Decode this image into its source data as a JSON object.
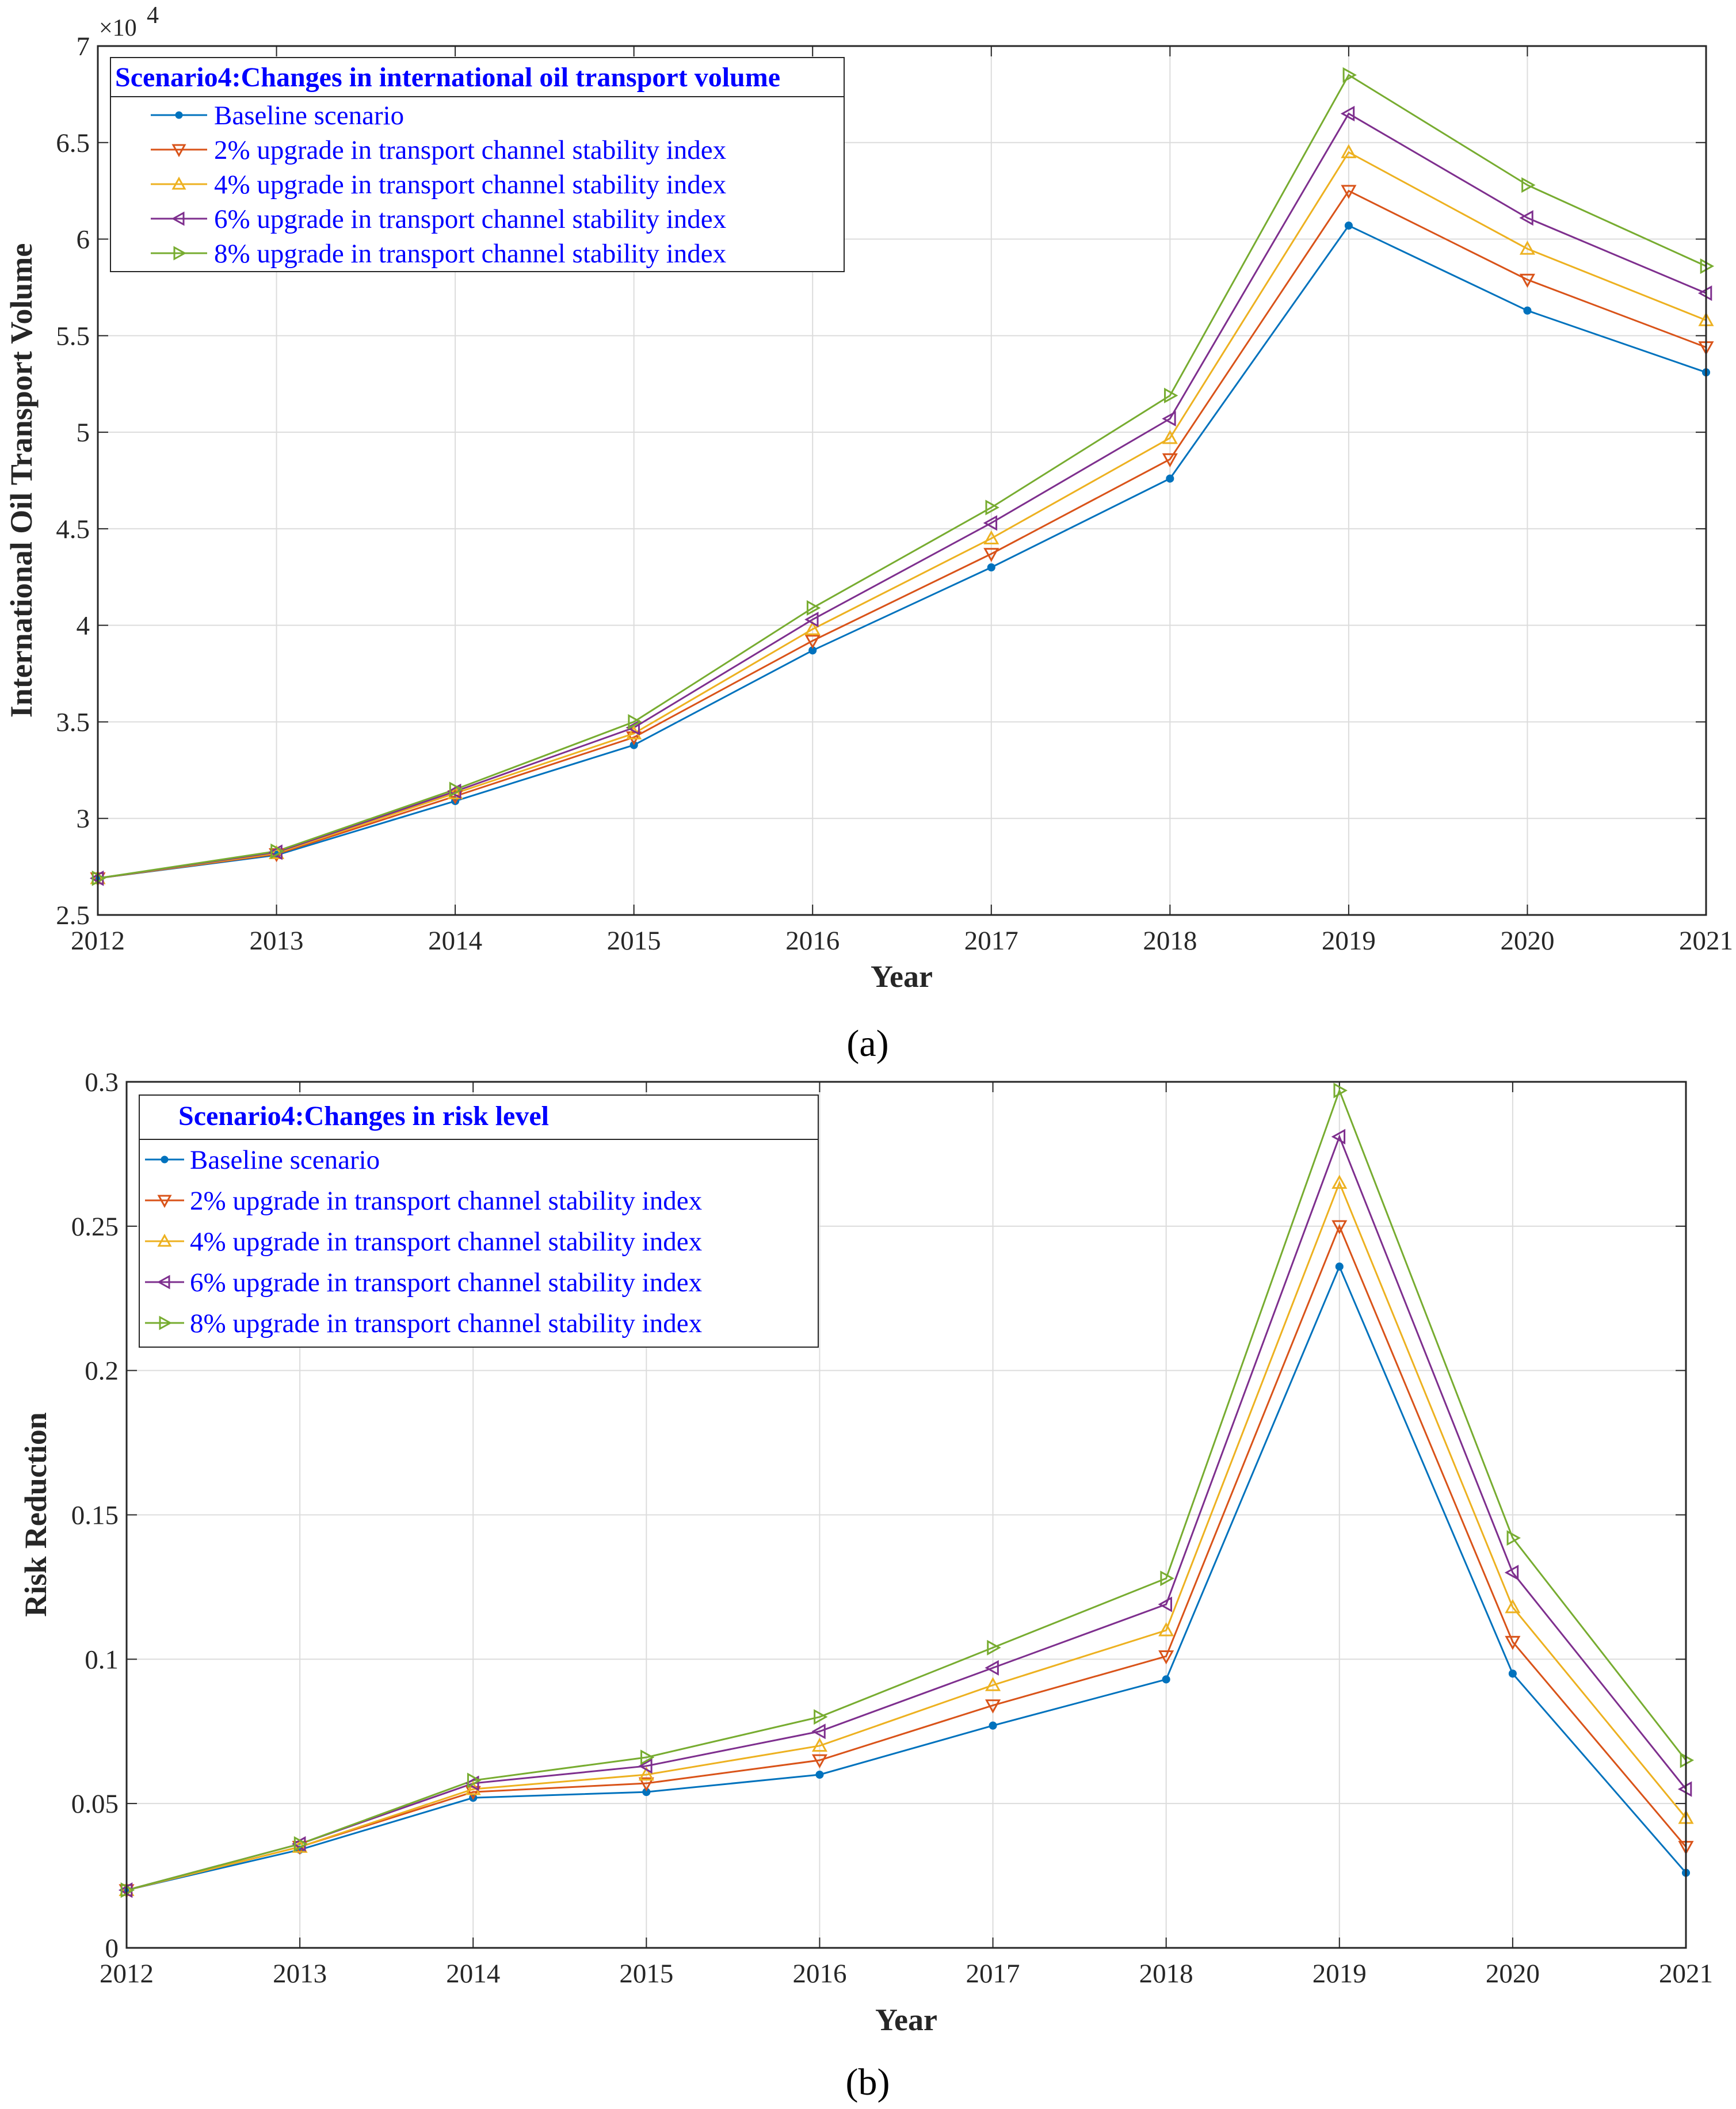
{
  "chart_data": [
    {
      "type": "line",
      "id": "a",
      "caption": "(a)",
      "legend_title": "Scenario4:Changes in international oil transport volume",
      "xlabel": "Year",
      "ylabel": "International Oil Transport Volume",
      "y_exponent_base": "×10",
      "y_exponent_power": "4",
      "x": [
        2012,
        2013,
        2014,
        2015,
        2016,
        2017,
        2018,
        2019,
        2020,
        2021
      ],
      "xlim": [
        2012,
        2021
      ],
      "ylim": [
        2.5,
        7
      ],
      "x_ticks": [
        "2012",
        "2013",
        "2014",
        "2015",
        "2016",
        "2017",
        "2018",
        "2019",
        "2020",
        "2021"
      ],
      "y_ticks": [
        "2.5",
        "3",
        "3.5",
        "4",
        "4.5",
        "5",
        "5.5",
        "6",
        "6.5",
        "7"
      ],
      "y_tick_values": [
        2.5,
        3,
        3.5,
        4,
        4.5,
        5,
        5.5,
        6,
        6.5,
        7
      ],
      "legend_position": "top-left",
      "series": [
        {
          "name": "Baseline scenario",
          "marker": "dot",
          "color": "#0072BD",
          "values": [
            2.69,
            2.81,
            3.09,
            3.38,
            3.87,
            4.3,
            4.76,
            6.07,
            5.63,
            5.31
          ]
        },
        {
          "name": "2% upgrade in transport channel stability index",
          "marker": "triangle-down",
          "color": "#D95319",
          "values": [
            2.69,
            2.815,
            3.115,
            3.42,
            3.92,
            4.37,
            4.86,
            6.25,
            5.79,
            5.44
          ]
        },
        {
          "name": "4% upgrade in transport channel stability index",
          "marker": "triangle-up",
          "color": "#EDB120",
          "values": [
            2.69,
            2.82,
            3.13,
            3.44,
            3.98,
            4.45,
            4.97,
            6.45,
            5.95,
            5.58
          ]
        },
        {
          "name": "6% upgrade in transport channel stability index",
          "marker": "triangle-left",
          "color": "#7E2F8E",
          "values": [
            2.69,
            2.825,
            3.14,
            3.47,
            4.03,
            4.53,
            5.07,
            6.65,
            6.11,
            5.72
          ]
        },
        {
          "name": "8% upgrade in transport channel stability index",
          "marker": "triangle-right",
          "color": "#77AC30",
          "values": [
            2.69,
            2.83,
            3.15,
            3.5,
            4.09,
            4.61,
            5.19,
            6.85,
            6.28,
            5.86
          ]
        }
      ]
    },
    {
      "type": "line",
      "id": "b",
      "caption": "(b)",
      "legend_title": "Scenario4:Changes in risk level",
      "xlabel": "Year",
      "ylabel": "Risk Reduction",
      "x": [
        2012,
        2013,
        2014,
        2015,
        2016,
        2017,
        2018,
        2019,
        2020,
        2021
      ],
      "xlim": [
        2012,
        2021
      ],
      "ylim": [
        0,
        0.3
      ],
      "x_ticks": [
        "2012",
        "2013",
        "2014",
        "2015",
        "2016",
        "2017",
        "2018",
        "2019",
        "2020",
        "2021"
      ],
      "y_ticks": [
        "0",
        "0.05",
        "0.1",
        "0.15",
        "0.2",
        "0.25",
        "0.3"
      ],
      "y_tick_values": [
        0,
        0.05,
        0.1,
        0.15,
        0.2,
        0.25,
        0.3
      ],
      "legend_position": "top-left",
      "series": [
        {
          "name": "Baseline scenario",
          "marker": "dot",
          "color": "#0072BD",
          "values": [
            0.02,
            0.034,
            0.052,
            0.054,
            0.06,
            0.077,
            0.093,
            0.236,
            0.095,
            0.026
          ]
        },
        {
          "name": "2% upgrade in transport channel stability index",
          "marker": "triangle-down",
          "color": "#D95319",
          "values": [
            0.02,
            0.035,
            0.054,
            0.057,
            0.065,
            0.084,
            0.101,
            0.25,
            0.106,
            0.035
          ]
        },
        {
          "name": "4% upgrade in transport channel stability index",
          "marker": "triangle-up",
          "color": "#EDB120",
          "values": [
            0.02,
            0.035,
            0.055,
            0.06,
            0.07,
            0.091,
            0.11,
            0.265,
            0.118,
            0.045
          ]
        },
        {
          "name": "6% upgrade in transport channel stability index",
          "marker": "triangle-left",
          "color": "#7E2F8E",
          "values": [
            0.02,
            0.036,
            0.057,
            0.063,
            0.075,
            0.097,
            0.119,
            0.281,
            0.13,
            0.055
          ]
        },
        {
          "name": "8% upgrade in transport channel stability index",
          "marker": "triangle-right",
          "color": "#77AC30",
          "values": [
            0.02,
            0.036,
            0.058,
            0.066,
            0.08,
            0.104,
            0.128,
            0.297,
            0.142,
            0.065
          ]
        }
      ]
    }
  ]
}
